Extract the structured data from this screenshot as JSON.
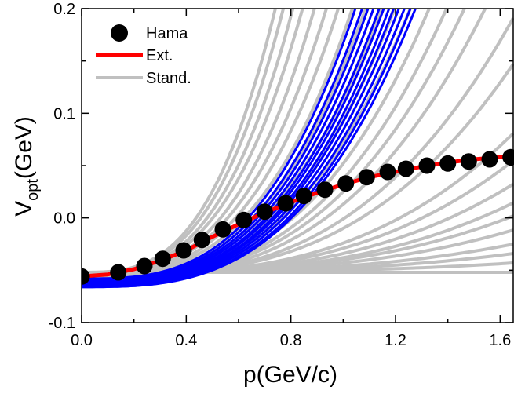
{
  "chart_data": {
    "type": "line",
    "xlabel": "p(GeV/c)",
    "ylabel_main": "V",
    "ylabel_sub": "opt",
    "ylabel_tail": "(GeV)",
    "xlim": [
      0.0,
      1.65
    ],
    "ylim": [
      -0.1,
      0.2
    ],
    "xticks": [
      0.0,
      0.4,
      0.8,
      1.2,
      1.6
    ],
    "xtick_labels": [
      "0.0",
      "0.4",
      "0.8",
      "1.2",
      "1.6"
    ],
    "yticks": [
      -0.1,
      0.0,
      0.1,
      0.2
    ],
    "ytick_labels": [
      "-0.1",
      "0.0",
      "0.1",
      "0.2"
    ],
    "legend_position": "top-left",
    "colors": {
      "hama": "#000000",
      "ext": "#ff0000",
      "stand": "#c0c0c0",
      "band": "#0000ff"
    },
    "series": [
      {
        "name": "Hama",
        "kind": "points",
        "x": [
          0.0,
          0.14,
          0.24,
          0.31,
          0.39,
          0.46,
          0.54,
          0.62,
          0.7,
          0.78,
          0.85,
          0.93,
          1.01,
          1.09,
          1.17,
          1.24,
          1.32,
          1.4,
          1.48,
          1.56,
          1.64
        ],
        "y": [
          -0.056,
          -0.052,
          -0.046,
          -0.039,
          -0.031,
          -0.021,
          -0.011,
          -0.002,
          0.006,
          0.014,
          0.021,
          0.027,
          0.033,
          0.039,
          0.044,
          0.047,
          0.05,
          0.052,
          0.054,
          0.056,
          0.058
        ]
      },
      {
        "name": "Ext.",
        "kind": "line",
        "x": [
          0.0,
          0.1,
          0.2,
          0.3,
          0.4,
          0.5,
          0.6,
          0.7,
          0.8,
          0.9,
          1.0,
          1.1,
          1.2,
          1.3,
          1.4,
          1.5,
          1.6,
          1.65
        ],
        "y": [
          -0.056,
          -0.054,
          -0.049,
          -0.041,
          -0.031,
          -0.018,
          -0.006,
          0.005,
          0.015,
          0.024,
          0.032,
          0.039,
          0.044,
          0.049,
          0.053,
          0.056,
          0.058,
          0.058
        ]
      },
      {
        "name": "Stand.",
        "kind": "family",
        "note_curve_form": "y = y0 + c*p^n",
        "curves": [
          {
            "y0": -0.052,
            "c": 0.62,
            "n": 3
          },
          {
            "y0": -0.052,
            "c": 0.55,
            "n": 3
          },
          {
            "y0": -0.053,
            "c": 0.48,
            "n": 3
          },
          {
            "y0": -0.053,
            "c": 0.42,
            "n": 3
          },
          {
            "y0": -0.054,
            "c": 0.36,
            "n": 3
          },
          {
            "y0": -0.054,
            "c": 0.31,
            "n": 3
          },
          {
            "y0": -0.055,
            "c": 0.27,
            "n": 3
          },
          {
            "y0": -0.055,
            "c": 0.23,
            "n": 3
          },
          {
            "y0": -0.056,
            "c": 0.2,
            "n": 3
          },
          {
            "y0": -0.056,
            "c": 0.17,
            "n": 3
          },
          {
            "y0": -0.057,
            "c": 0.15,
            "n": 3
          },
          {
            "y0": -0.058,
            "c": 0.13,
            "n": 3
          },
          {
            "y0": -0.058,
            "c": 0.11,
            "n": 3
          },
          {
            "y0": -0.058,
            "c": 0.095,
            "n": 3
          },
          {
            "y0": -0.057,
            "c": 0.082,
            "n": 3
          },
          {
            "y0": -0.057,
            "c": 0.07,
            "n": 3
          },
          {
            "y0": -0.056,
            "c": 0.055,
            "n": 3
          },
          {
            "y0": -0.055,
            "c": 0.045,
            "n": 3
          },
          {
            "y0": -0.054,
            "c": 0.03,
            "n": 3
          },
          {
            "y0": -0.053,
            "c": 0.024,
            "n": 3
          },
          {
            "y0": -0.053,
            "c": 0.019,
            "n": 3
          },
          {
            "y0": -0.053,
            "c": 0.015,
            "n": 3
          },
          {
            "y0": -0.052,
            "c": 0.012,
            "n": 3
          },
          {
            "y0": -0.052,
            "c": 0.009,
            "n": 3
          },
          {
            "y0": -0.052,
            "c": 0.006,
            "n": 3
          },
          {
            "y0": -0.052,
            "c": 0.004,
            "n": 3
          },
          {
            "y0": -0.052,
            "c": 0.002,
            "n": 3
          },
          {
            "y0": -0.052,
            "c": 0.0,
            "n": 3
          }
        ]
      },
      {
        "name": "",
        "kind": "family",
        "color_key": "band",
        "curves": [
          {
            "y0": -0.058,
            "c": 0.225,
            "n": 3
          },
          {
            "y0": -0.059,
            "c": 0.21,
            "n": 3
          },
          {
            "y0": -0.06,
            "c": 0.198,
            "n": 3
          },
          {
            "y0": -0.061,
            "c": 0.188,
            "n": 3
          },
          {
            "y0": -0.062,
            "c": 0.178,
            "n": 3
          },
          {
            "y0": -0.062,
            "c": 0.17,
            "n": 3
          },
          {
            "y0": -0.063,
            "c": 0.162,
            "n": 3
          },
          {
            "y0": -0.063,
            "c": 0.155,
            "n": 3
          },
          {
            "y0": -0.064,
            "c": 0.148,
            "n": 3
          },
          {
            "y0": -0.065,
            "c": 0.141,
            "n": 3
          },
          {
            "y0": -0.066,
            "c": 0.134,
            "n": 3
          },
          {
            "y0": -0.066,
            "c": 0.128,
            "n": 3
          }
        ]
      }
    ]
  }
}
